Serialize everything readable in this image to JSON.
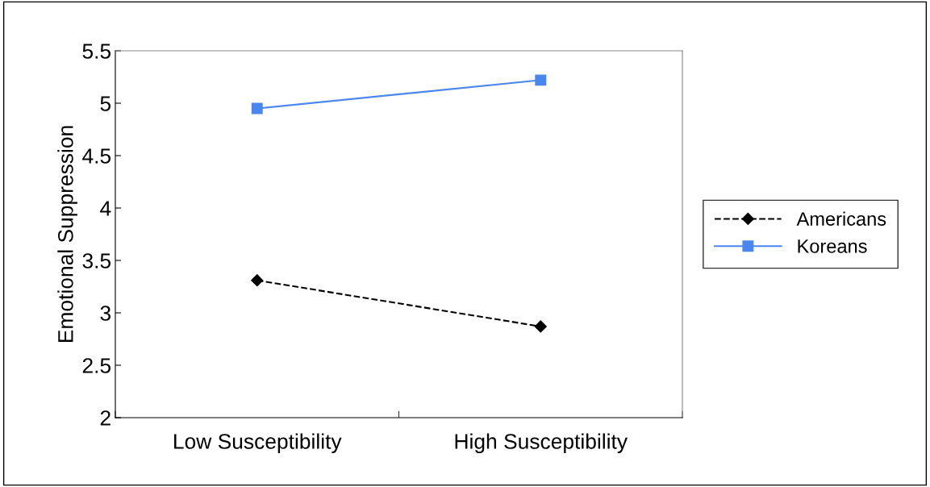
{
  "chart_data": {
    "type": "line",
    "ylabel": "Emotional Suppression",
    "categories": [
      "Low Susceptibility",
      "High Susceptibility"
    ],
    "series": [
      {
        "name": "Americans",
        "color": "#000000",
        "values": [
          3.31,
          2.87
        ],
        "marker": "diamond",
        "line_style": "dashed"
      },
      {
        "name": "Koreans",
        "color": "#4a86f0",
        "values": [
          4.95,
          5.22
        ],
        "marker": "square",
        "line_style": "solid"
      }
    ],
    "ylim": [
      2,
      5.5
    ],
    "yticks": [
      2,
      2.5,
      3,
      3.5,
      4,
      4.5,
      5,
      5.5
    ],
    "grid": false,
    "legend": "right"
  }
}
